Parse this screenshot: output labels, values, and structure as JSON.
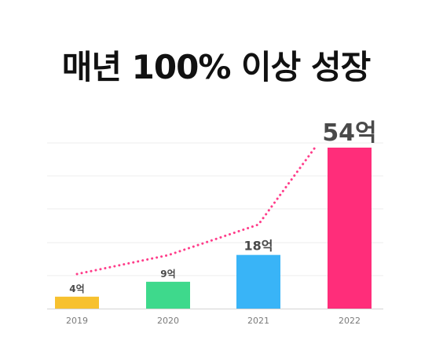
{
  "chart_data": {
    "type": "bar",
    "title": "매년 100% 이상 성장",
    "categories": [
      "2019",
      "2020",
      "2021",
      "2022"
    ],
    "values": [
      4,
      9,
      18,
      54
    ],
    "value_labels": [
      "4억",
      "9억",
      "18억",
      "54억"
    ],
    "colors": [
      "#f7c12f",
      "#3ed98c",
      "#39b4f7",
      "#ff2d7a"
    ],
    "trend_line": {
      "style": "dotted",
      "color": "#ff3d8a"
    },
    "xlabel": "",
    "ylabel": "",
    "ylim": [
      0,
      60
    ],
    "grid": true,
    "legend": "none"
  }
}
